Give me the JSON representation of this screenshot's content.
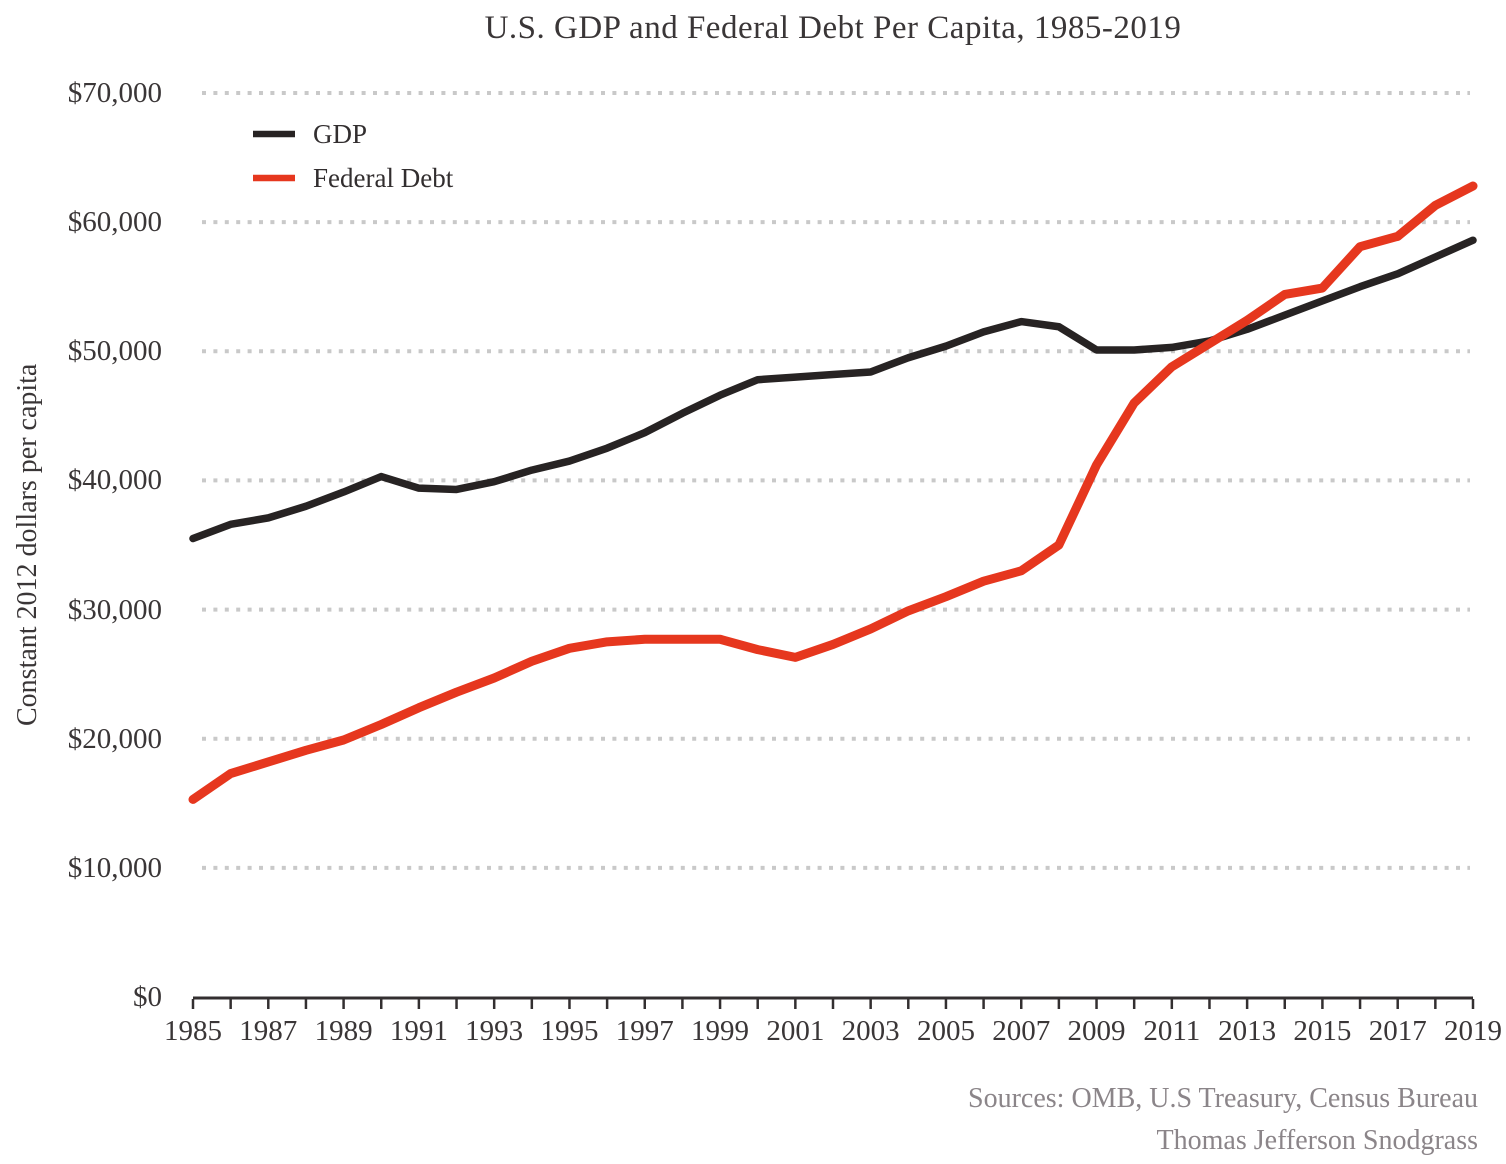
{
  "title": "U.S. GDP and Federal Debt Per Capita, 1985-2019",
  "y_axis_label": "Constant 2012 dollars per capita",
  "sources_line1": "Sources: OMB, U.S Treasury, Census Bureau",
  "sources_line2": "Thomas Jefferson Snodgrass",
  "legend": [
    {
      "label": "GDP",
      "color": "#272323"
    },
    {
      "label": "Federal Debt",
      "color": "#e6371e"
    }
  ],
  "colors": {
    "gdp_line": "#272323",
    "debt_line": "#e6371e",
    "gridline": "#c9c9c9",
    "axis": "#332f30",
    "text": "#3a3637",
    "sources_text": "#8b8589",
    "background": "#ffffff"
  },
  "chart_data": {
    "type": "line",
    "title": "U.S. GDP and Federal Debt Per Capita, 1985-2019",
    "xlabel": "",
    "ylabel": "Constant 2012 dollars per capita",
    "x": [
      1985,
      1986,
      1987,
      1988,
      1989,
      1990,
      1991,
      1992,
      1993,
      1994,
      1995,
      1996,
      1997,
      1998,
      1999,
      2000,
      2001,
      2002,
      2003,
      2004,
      2005,
      2006,
      2007,
      2008,
      2009,
      2010,
      2011,
      2012,
      2013,
      2014,
      2015,
      2016,
      2017,
      2018,
      2019
    ],
    "series": [
      {
        "name": "GDP",
        "color": "#272323",
        "values": [
          35500,
          36600,
          37100,
          38000,
          39100,
          40300,
          39400,
          39300,
          39900,
          40800,
          41500,
          42500,
          43700,
          45200,
          46600,
          47800,
          48000,
          48200,
          48400,
          49500,
          50400,
          51500,
          52300,
          51900,
          50100,
          50100,
          50300,
          50800,
          51700,
          52800,
          53900,
          55000,
          56000,
          57300,
          58600
        ]
      },
      {
        "name": "Federal Debt",
        "color": "#e6371e",
        "values": [
          15300,
          17300,
          18200,
          19100,
          19900,
          21100,
          22400,
          23600,
          24700,
          26000,
          27000,
          27500,
          27700,
          27700,
          27700,
          26900,
          26300,
          27300,
          28500,
          29900,
          31000,
          32200,
          33000,
          35000,
          41200,
          46000,
          48800,
          50600,
          52400,
          54400,
          54900,
          58100,
          58900,
          61300,
          62800
        ]
      }
    ],
    "ylim": [
      0,
      70000
    ],
    "yticks": [
      0,
      10000,
      20000,
      30000,
      40000,
      50000,
      60000,
      70000
    ],
    "ytick_labels": [
      "$0",
      "$10,000",
      "$20,000",
      "$30,000",
      "$40,000",
      "$50,000",
      "$60,000",
      "$70,000"
    ],
    "xtick_labels": [
      "1985",
      "1987",
      "1989",
      "1991",
      "1993",
      "1995",
      "1997",
      "1999",
      "2001",
      "2003",
      "2005",
      "2007",
      "2009",
      "2011",
      "2013",
      "2015",
      "2017",
      "2019"
    ],
    "grid": "horizontal dotted gridlines",
    "legend_position": "top-left inside plot"
  }
}
